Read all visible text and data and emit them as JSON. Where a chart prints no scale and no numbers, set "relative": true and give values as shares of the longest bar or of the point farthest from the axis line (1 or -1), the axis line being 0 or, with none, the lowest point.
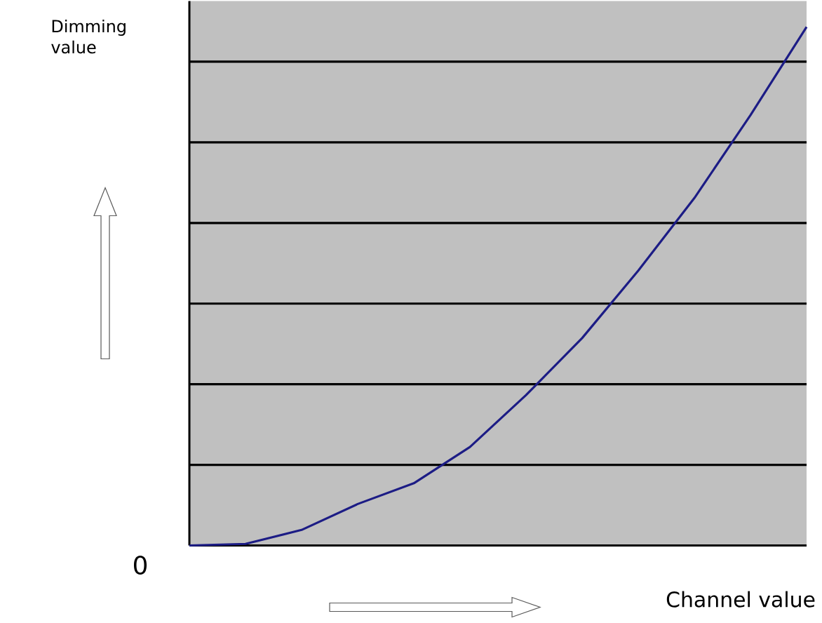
{
  "chart_data": {
    "type": "line",
    "relative": true,
    "xlabel": "Channel value",
    "ylabel": "Dimming value",
    "annotations": [
      "0"
    ],
    "categories": [
      null,
      null,
      null,
      null,
      null,
      null,
      null,
      null,
      null,
      null,
      null,
      null
    ],
    "series": [
      {
        "color": "#1c1c85",
        "values": [
          0,
          0.003,
          0.03,
          0.08,
          0.12,
          0.19,
          0.29,
          0.4,
          0.53,
          0.67,
          0.83,
          1
        ]
      }
    ],
    "grid": "y",
    "marker": "none",
    "line_style": "solid"
  }
}
